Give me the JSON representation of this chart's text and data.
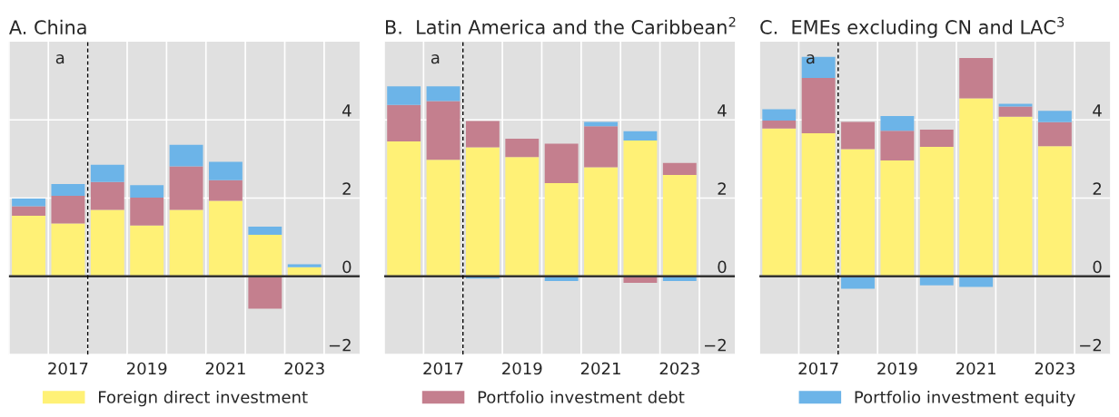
{
  "chart_data": [
    {
      "type": "bar",
      "title": "A. China",
      "stacked": true,
      "x": [
        2016,
        2017,
        2018,
        2019,
        2020,
        2021,
        2022,
        2023
      ],
      "series": [
        {
          "name": "Foreign direct investment",
          "color": "#fff176",
          "values": [
            1.55,
            1.35,
            1.7,
            1.3,
            1.7,
            1.93,
            1.06,
            0.23
          ]
        },
        {
          "name": "Portfolio investment debt",
          "color": "#c47f8e",
          "values": [
            0.24,
            0.71,
            0.71,
            0.71,
            1.11,
            0.53,
            -0.83,
            0
          ]
        },
        {
          "name": "Portfolio investment equity",
          "color": "#6cb4e8",
          "values": [
            0.2,
            0.3,
            0.44,
            0.32,
            0.55,
            0.47,
            0.21,
            0.08
          ]
        }
      ],
      "xlim": [
        2015.5,
        2024.4
      ],
      "xticks": [
        {
          "value": 2015.5,
          "label": null
        },
        {
          "value": 2016.5,
          "label": null
        },
        2017,
        {
          "value": 2017.5,
          "label": null
        },
        {
          "value": 2018.5,
          "label": null
        },
        2019,
        {
          "value": 2019.5,
          "label": null
        },
        {
          "value": 2020.5,
          "label": null
        },
        2021,
        {
          "value": 2021.5,
          "label": null
        },
        {
          "value": 2022.5,
          "label": null
        },
        2023,
        {
          "value": 2023.5,
          "label": null
        }
      ],
      "ylim": [
        -2,
        6
      ],
      "yticks": [
        -2,
        0,
        2,
        4
      ],
      "grid": true,
      "legend": "bottom",
      "ref_lines": [
        {
          "axis": "x",
          "value": 2017.5,
          "label": "a",
          "line_style": "dashed",
          "color": "#000000"
        }
      ]
    },
    {
      "type": "bar",
      "title": "B.  Latin America and the Caribbean$^{2}$",
      "stacked": true,
      "x": [
        2016,
        2017,
        2018,
        2019,
        2020,
        2021,
        2022,
        2023
      ],
      "series": [
        {
          "color": "#fff176",
          "values": [
            3.45,
            2.98,
            3.3,
            3.05,
            2.38,
            2.79,
            3.47,
            2.59
          ]
        },
        {
          "color": "#c47f8e",
          "values": [
            0.93,
            1.5,
            0.67,
            0.47,
            1.01,
            1.05,
            -0.17,
            0.31
          ]
        },
        {
          "color": "#6cb4e8",
          "values": [
            0.48,
            0.38,
            -0.06,
            0,
            -0.12,
            0.11,
            0.24,
            -0.12
          ]
        }
      ],
      "xlim": [
        2015.5,
        2024.4
      ],
      "xticks": [
        {
          "value": 2015.5,
          "label": null
        },
        {
          "value": 2016.5,
          "label": null
        },
        2017,
        {
          "value": 2017.5,
          "label": null
        },
        {
          "value": 2018.5,
          "label": null
        },
        2019,
        {
          "value": 2019.5,
          "label": null
        },
        {
          "value": 2020.5,
          "label": null
        },
        2021,
        {
          "value": 2021.5,
          "label": null
        },
        {
          "value": 2022.5,
          "label": null
        },
        2023,
        {
          "value": 2023.5,
          "label": null
        }
      ],
      "ylim": [
        -2,
        6
      ],
      "yticks": [
        -2,
        0,
        2,
        4
      ],
      "grid": true,
      "ref_lines": [
        {
          "axis": "x",
          "value": 2017.5,
          "label": "a",
          "line_style": "dashed",
          "color": "#000000"
        }
      ]
    },
    {
      "type": "bar",
      "title": "C.  EMEs excluding CN and LAC$^{3}$",
      "stacked": true,
      "x": [
        2016,
        2017,
        2018,
        2019,
        2020,
        2021,
        2022,
        2023
      ],
      "series": [
        {
          "color": "#fff176",
          "values": [
            3.78,
            3.66,
            3.25,
            2.96,
            3.31,
            4.55,
            4.08,
            3.33
          ]
        },
        {
          "color": "#c47f8e",
          "values": [
            0.2,
            1.41,
            0.7,
            0.76,
            0.44,
            1.03,
            0.26,
            0.61
          ]
        },
        {
          "color": "#6cb4e8",
          "values": [
            0.29,
            0.54,
            -0.32,
            0.38,
            -0.23,
            -0.27,
            0.07,
            0.29
          ]
        }
      ],
      "xlim": [
        2015.5,
        2024.4
      ],
      "xticks": [
        {
          "value": 2015.5,
          "label": null
        },
        {
          "value": 2016.5,
          "label": null
        },
        2017,
        {
          "value": 2017.5,
          "label": null
        },
        {
          "value": 2018.5,
          "label": null
        },
        2019,
        {
          "value": 2019.5,
          "label": null
        },
        {
          "value": 2020.5,
          "label": null
        },
        2021,
        {
          "value": 2021.5,
          "label": null
        },
        {
          "value": 2022.5,
          "label": null
        },
        2023,
        {
          "value": 2023.5,
          "label": null
        }
      ],
      "ylim": [
        -2,
        6
      ],
      "yticks": [
        -2,
        0,
        2,
        4
      ],
      "grid": true,
      "ref_lines": [
        {
          "axis": "x",
          "value": 2017.5,
          "label": "a",
          "line_style": "dashed",
          "color": "#000000"
        }
      ]
    }
  ]
}
